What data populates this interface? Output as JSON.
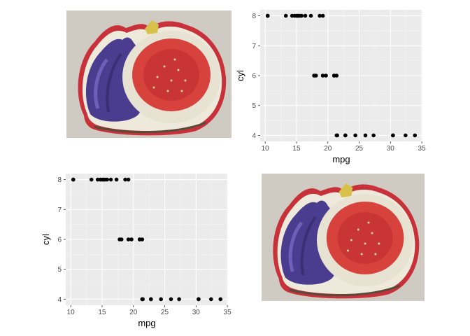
{
  "chart_data": [
    {
      "type": "scatter",
      "xlabel": "mpg",
      "ylabel": "cyl",
      "xlim": [
        9.2,
        35.1
      ],
      "ylim": [
        3.8,
        8.2
      ],
      "xticks": [
        10,
        15,
        20,
        25,
        30,
        35
      ],
      "yticks": [
        4,
        5,
        6,
        7,
        8
      ],
      "grid": true,
      "points": [
        [
          21.0,
          6
        ],
        [
          21.0,
          6
        ],
        [
          22.8,
          4
        ],
        [
          21.4,
          6
        ],
        [
          18.7,
          8
        ],
        [
          18.1,
          6
        ],
        [
          14.3,
          8
        ],
        [
          24.4,
          4
        ],
        [
          22.8,
          4
        ],
        [
          19.2,
          6
        ],
        [
          17.8,
          6
        ],
        [
          16.4,
          8
        ],
        [
          17.3,
          8
        ],
        [
          15.2,
          8
        ],
        [
          10.4,
          8
        ],
        [
          10.4,
          8
        ],
        [
          14.7,
          8
        ],
        [
          32.4,
          4
        ],
        [
          30.4,
          4
        ],
        [
          33.9,
          4
        ],
        [
          21.5,
          4
        ],
        [
          15.5,
          8
        ],
        [
          15.2,
          8
        ],
        [
          13.3,
          8
        ],
        [
          19.2,
          8
        ],
        [
          27.3,
          4
        ],
        [
          26.0,
          4
        ],
        [
          30.4,
          4
        ],
        [
          15.8,
          8
        ],
        [
          19.7,
          6
        ],
        [
          15.0,
          8
        ],
        [
          21.4,
          4
        ]
      ]
    },
    {
      "type": "scatter",
      "xlabel": "mpg",
      "ylabel": "cyl",
      "xlim": [
        9.2,
        35.1
      ],
      "ylim": [
        3.8,
        8.2
      ],
      "xticks": [
        10,
        15,
        20,
        25,
        30,
        35
      ],
      "yticks": [
        4,
        5,
        6,
        7,
        8
      ],
      "grid": true,
      "points": [
        [
          21.0,
          6
        ],
        [
          21.0,
          6
        ],
        [
          22.8,
          4
        ],
        [
          21.4,
          6
        ],
        [
          18.7,
          8
        ],
        [
          18.1,
          6
        ],
        [
          14.3,
          8
        ],
        [
          24.4,
          4
        ],
        [
          22.8,
          4
        ],
        [
          19.2,
          6
        ],
        [
          17.8,
          6
        ],
        [
          16.4,
          8
        ],
        [
          17.3,
          8
        ],
        [
          15.2,
          8
        ],
        [
          10.4,
          8
        ],
        [
          10.4,
          8
        ],
        [
          14.7,
          8
        ],
        [
          32.4,
          4
        ],
        [
          30.4,
          4
        ],
        [
          33.9,
          4
        ],
        [
          21.5,
          4
        ],
        [
          15.5,
          8
        ],
        [
          15.2,
          8
        ],
        [
          13.3,
          8
        ],
        [
          19.2,
          8
        ],
        [
          27.3,
          4
        ],
        [
          26.0,
          4
        ],
        [
          30.4,
          4
        ],
        [
          15.8,
          8
        ],
        [
          19.7,
          6
        ],
        [
          15.0,
          8
        ],
        [
          21.4,
          4
        ]
      ]
    }
  ],
  "images": [
    {
      "subject": "embroidered fig patch",
      "colors": {
        "background": "#cfcac2",
        "border": "#c8313a",
        "skin": "#4a3c8e",
        "flesh": "#d8423d",
        "rind": "#efe9dc",
        "stem": "#d8c14a"
      }
    },
    {
      "subject": "embroidered fig patch",
      "colors": {
        "background": "#cfcac2",
        "border": "#c8313a",
        "skin": "#4a3c8e",
        "flesh": "#d8423d",
        "rind": "#efe9dc",
        "stem": "#d8c14a"
      }
    }
  ]
}
